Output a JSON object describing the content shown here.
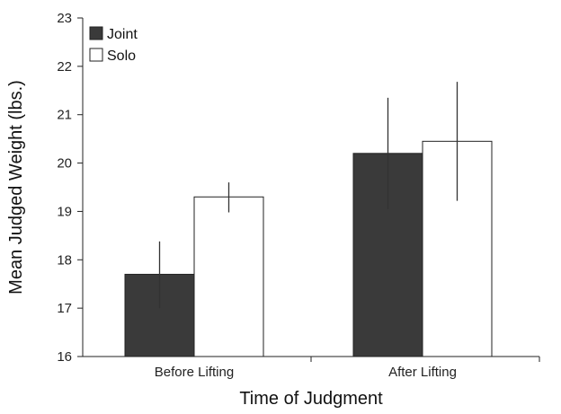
{
  "chart_data": {
    "type": "bar",
    "title": "",
    "xlabel": "Time of Judgment",
    "ylabel": "Mean Judged Weight (lbs.)",
    "categories": [
      "Before Lifting",
      "After Lifting"
    ],
    "ylim": [
      16,
      23
    ],
    "yticks": [
      16,
      17,
      18,
      19,
      20,
      21,
      22,
      23
    ],
    "grid": false,
    "legend_position": "top-left",
    "series": [
      {
        "name": "Joint",
        "color": "#3a3a3a",
        "values": [
          17.7,
          20.2
        ],
        "error_low": [
          17.0,
          19.05
        ],
        "error_high": [
          18.38,
          21.35
        ]
      },
      {
        "name": "Solo",
        "color": "#ffffff",
        "values": [
          19.3,
          20.45
        ],
        "error_low": [
          18.98,
          19.22
        ],
        "error_high": [
          19.6,
          21.68
        ]
      }
    ]
  }
}
